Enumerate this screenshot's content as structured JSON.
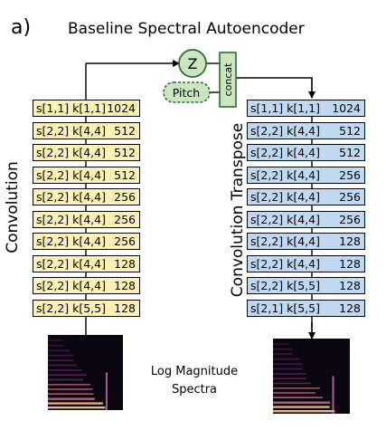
{
  "panel_label": "a)",
  "title": "Baseline Spectral Autoencoder",
  "latent_node": "Z",
  "pitch_node": "Pitch",
  "concat_label": "concat",
  "encoder": {
    "label": "Convolution",
    "layers": [
      {
        "spec": "s[1,1] k[1,1]",
        "channels": "1024"
      },
      {
        "spec": "s[2,2] k[4,4]",
        "channels": "512"
      },
      {
        "spec": "s[2,2] k[4,4]",
        "channels": "512"
      },
      {
        "spec": "s[2,2] k[4,4]",
        "channels": "512"
      },
      {
        "spec": "s[2,2] k[4,4]",
        "channels": "256"
      },
      {
        "spec": "s[2,2] k[4,4]",
        "channels": "256"
      },
      {
        "spec": "s[2,2] k[4,4]",
        "channels": "256"
      },
      {
        "spec": "s[2,2] k[4,4]",
        "channels": "128"
      },
      {
        "spec": "s[2,2] k[4,4]",
        "channels": "128"
      },
      {
        "spec": "s[2,2] k[5,5]",
        "channels": "128"
      }
    ]
  },
  "decoder": {
    "label": "Convolution Transpose",
    "layers": [
      {
        "spec": "s[1,1] k[1,1]",
        "channels": "1024"
      },
      {
        "spec": "s[2,2] k[4,4]",
        "channels": "512"
      },
      {
        "spec": "s[2,2] k[4,4]",
        "channels": "512"
      },
      {
        "spec": "s[2,2] k[4,4]",
        "channels": "256"
      },
      {
        "spec": "s[2,2] k[4,4]",
        "channels": "256"
      },
      {
        "spec": "s[2,2] k[4,4]",
        "channels": "256"
      },
      {
        "spec": "s[2,2] k[4,4]",
        "channels": "128"
      },
      {
        "spec": "s[2,2] k[4,4]",
        "channels": "128"
      },
      {
        "spec": "s[2,2] k[5,5]",
        "channels": "128"
      },
      {
        "spec": "s[2,1] k[5,5]",
        "channels": "128"
      }
    ]
  },
  "caption": {
    "line1": "Log Magnitude",
    "line2": "Spectra"
  },
  "colors": {
    "encoder_fill": "#fbf1b4",
    "decoder_fill": "#bfd9f2",
    "node_fill": "#c9e6c1",
    "node_stroke": "#2f6b2f"
  }
}
